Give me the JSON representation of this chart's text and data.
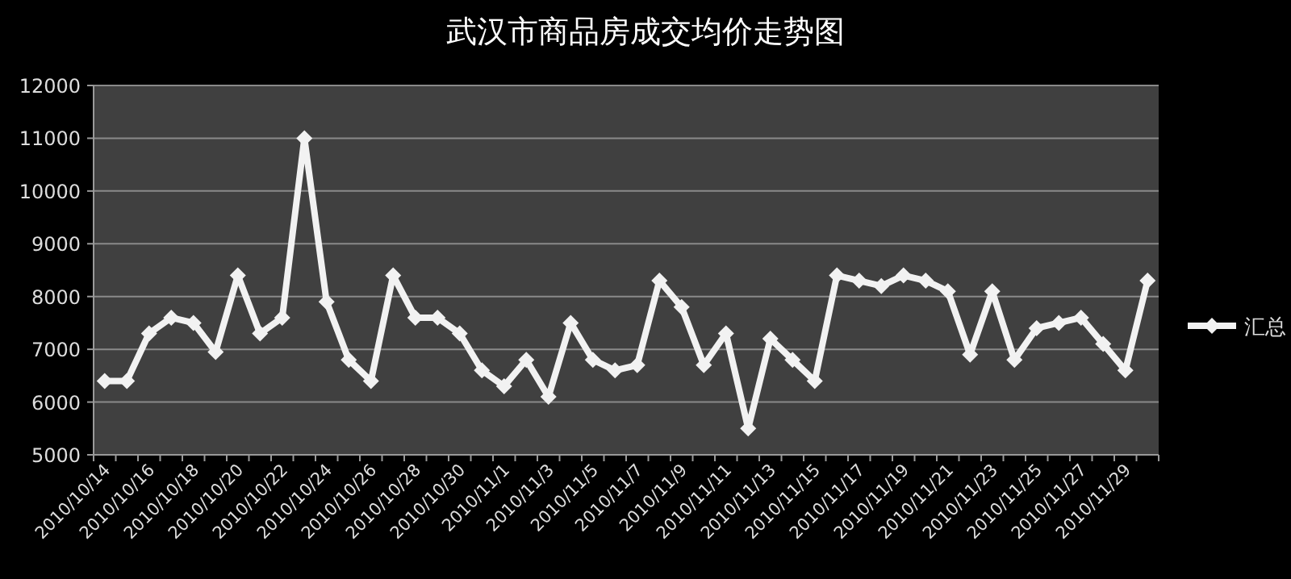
{
  "chart_data": {
    "type": "line",
    "title": "武汉市商品房成交均价走势图",
    "categories": [
      "2010/10/14",
      null,
      "2010/10/16",
      null,
      "2010/10/18",
      null,
      "2010/10/20",
      null,
      "2010/10/22",
      null,
      "2010/10/24",
      null,
      "2010/10/26",
      null,
      "2010/10/28",
      null,
      "2010/10/30",
      null,
      "2010/11/1",
      null,
      "2010/11/3",
      null,
      "2010/11/5",
      null,
      "2010/11/7",
      null,
      "2010/11/9",
      null,
      "2010/11/11",
      null,
      "2010/11/13",
      null,
      "2010/11/15",
      null,
      "2010/11/17",
      null,
      "2010/11/19",
      null,
      "2010/11/21",
      null,
      "2010/11/23",
      null,
      "2010/11/25",
      null,
      "2010/11/27",
      null,
      "2010/11/29",
      null
    ],
    "series": [
      {
        "name": "汇总",
        "color": "#f2f2f2",
        "values": [
          6400,
          6400,
          7300,
          7600,
          7500,
          6950,
          8400,
          7300,
          7600,
          11000,
          7900,
          6800,
          6400,
          8400,
          7600,
          7600,
          7300,
          6600,
          6300,
          6800,
          6100,
          7500,
          6800,
          6600,
          6700,
          8300,
          7800,
          6700,
          7300,
          5500,
          7200,
          6800,
          6400,
          8400,
          8300,
          8200,
          8400,
          8300,
          8100,
          6900,
          8100,
          6800,
          7400,
          7500,
          7600,
          7100,
          6600,
          8300
        ]
      }
    ],
    "ylim": [
      5000,
      12000
    ],
    "yticks": [
      5000,
      6000,
      7000,
      8000,
      9000,
      10000,
      11000,
      12000
    ],
    "grid": "y",
    "legend": "right",
    "marker": "diamond",
    "line_style": "solid"
  }
}
